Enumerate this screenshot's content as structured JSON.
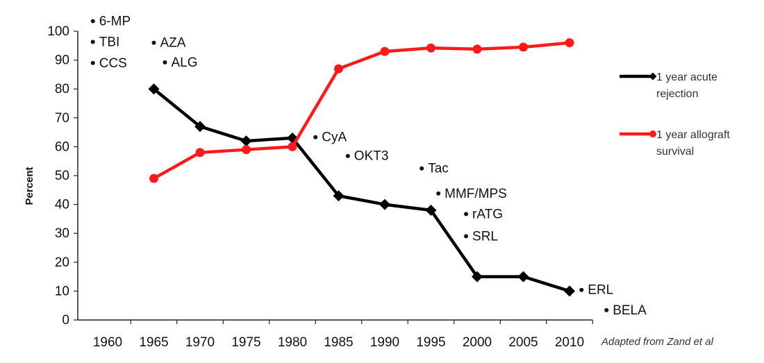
{
  "chart_data": {
    "type": "line",
    "ylabel": "Percent",
    "ylim": [
      0,
      100
    ],
    "yticks": [
      "0",
      "10",
      "20",
      "30",
      "40",
      "50",
      "60",
      "70",
      "80",
      "90",
      "100"
    ],
    "x": [
      1960,
      1965,
      1970,
      1975,
      1980,
      1985,
      1990,
      1995,
      2000,
      2005,
      2010
    ],
    "xticks": [
      "1960",
      "1965",
      "1970",
      "1975",
      "1980",
      "1985",
      "1990",
      "1995",
      "2000",
      "2005",
      "2010"
    ],
    "grid": false,
    "legend_position": "right",
    "series": [
      {
        "name": "1 year acute rejection",
        "legend_lines": [
          "1 year acute",
          "rejection"
        ],
        "color": "#000000",
        "marker": "diamond",
        "points": [
          {
            "x": 1965,
            "y": 80
          },
          {
            "x": 1970,
            "y": 67
          },
          {
            "x": 1975,
            "y": 62
          },
          {
            "x": 1980,
            "y": 63
          },
          {
            "x": 1985,
            "y": 43
          },
          {
            "x": 1990,
            "y": 40
          },
          {
            "x": 1995,
            "y": 38
          },
          {
            "x": 2000,
            "y": 15
          },
          {
            "x": 2005,
            "y": 15
          },
          {
            "x": 2010,
            "y": 10
          }
        ]
      },
      {
        "name": "1 year allograft survival",
        "legend_lines": [
          "1 year allograft",
          "survival"
        ],
        "color": "#ff1a1a",
        "marker": "circle",
        "points": [
          {
            "x": 1965,
            "y": 49
          },
          {
            "x": 1970,
            "y": 58
          },
          {
            "x": 1975,
            "y": 59
          },
          {
            "x": 1980,
            "y": 60
          },
          {
            "x": 1985,
            "y": 87
          },
          {
            "x": 1990,
            "y": 93
          },
          {
            "x": 1995,
            "y": 94.2
          },
          {
            "x": 2000,
            "y": 93.8
          },
          {
            "x": 2005,
            "y": 94.5
          },
          {
            "x": 2010,
            "y": 96
          }
        ]
      }
    ],
    "annotations": [
      {
        "text": "6-MP",
        "x": 1958.4,
        "y": 103.5
      },
      {
        "text": "TBI",
        "x": 1958.4,
        "y": 96.3
      },
      {
        "text": "CCS",
        "x": 1958.4,
        "y": 89
      },
      {
        "text": "AZA",
        "x": 1965,
        "y": 96
      },
      {
        "text": "ALG",
        "x": 1966.2,
        "y": 89.2
      },
      {
        "text": "CyA",
        "x": 1982.5,
        "y": 63.3
      },
      {
        "text": "OKT3",
        "x": 1986,
        "y": 56.8
      },
      {
        "text": "Tac",
        "x": 1994,
        "y": 52.5
      },
      {
        "text": "MMF/MPS",
        "x": 1995.8,
        "y": 43.8
      },
      {
        "text": "rATG",
        "x": 1998.8,
        "y": 36.7
      },
      {
        "text": "SRL",
        "x": 1998.8,
        "y": 29
      },
      {
        "text": "ERL",
        "x": 2011.3,
        "y": 10.4
      },
      {
        "text": "BELA",
        "x": 2014,
        "y": 3.4
      }
    ],
    "source_note": "Adapted from Zand et al"
  }
}
